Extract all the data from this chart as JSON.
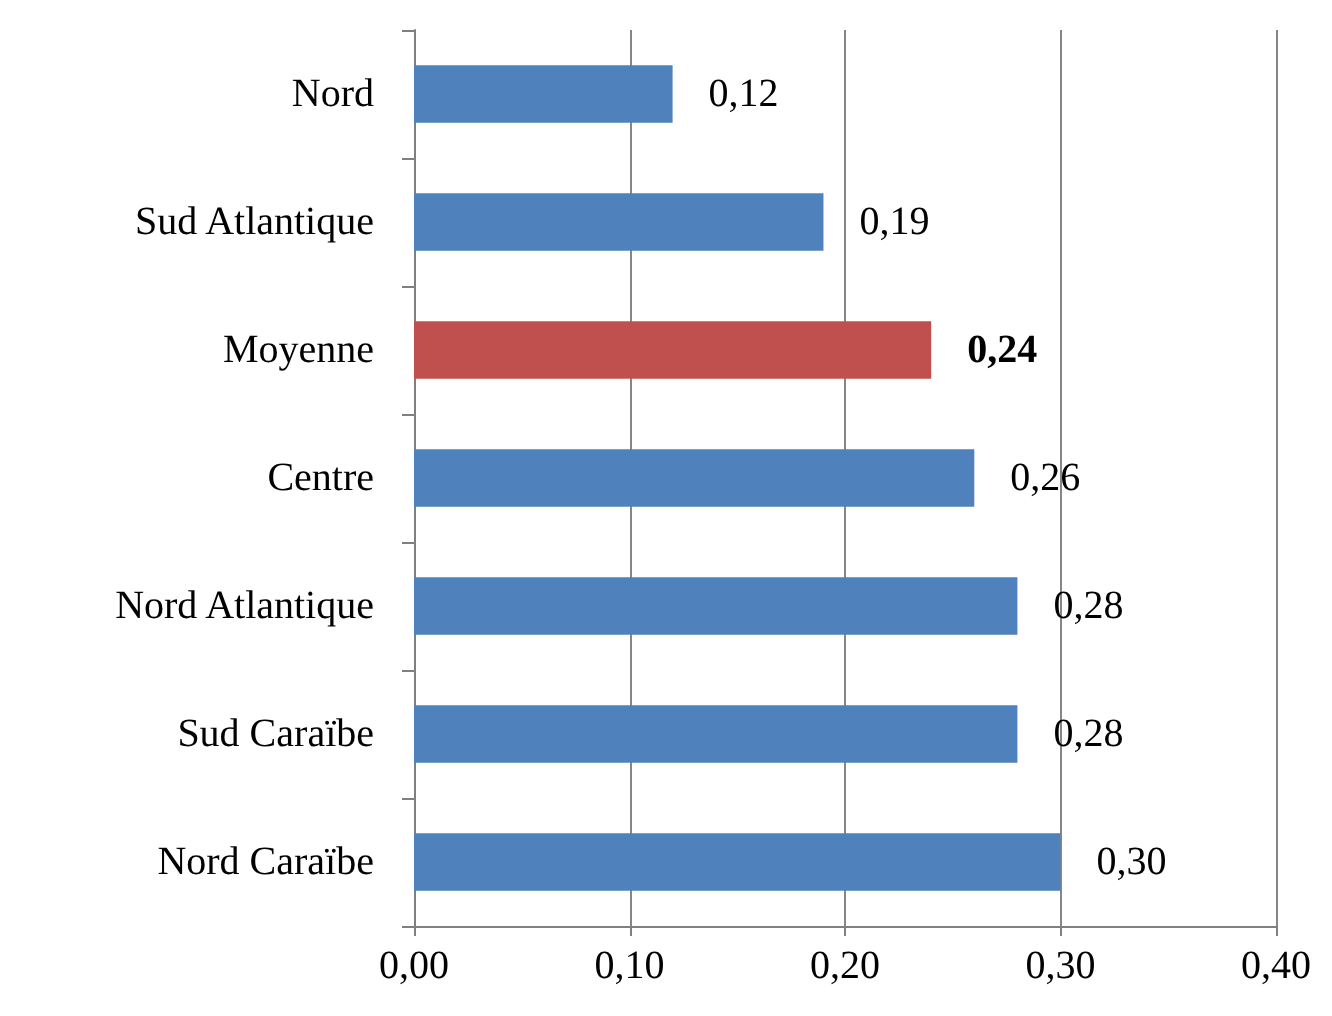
{
  "chart_data": {
    "type": "bar",
    "orientation": "horizontal",
    "categories": [
      "Nord",
      "Sud Atlantique",
      "Moyenne",
      "Centre",
      "Nord Atlantique",
      "Sud Caraïbe",
      "Nord Caraïbe"
    ],
    "values": [
      0.12,
      0.19,
      0.24,
      0.26,
      0.28,
      0.28,
      0.3
    ],
    "colors": [
      "#4f81bd",
      "#4f81bd",
      "#c0504d",
      "#4f81bd",
      "#4f81bd",
      "#4f81bd",
      "#4f81bd"
    ],
    "value_labels": [
      "0,12",
      "0,19",
      "0,24",
      "0,26",
      "0,28",
      "0,28",
      "0,30"
    ],
    "xlim": [
      0,
      0.4
    ],
    "xticks": [
      {
        "value": 0,
        "label": "0,00"
      },
      {
        "value": 0.1,
        "label": "0,10"
      },
      {
        "value": 0.2,
        "label": "0,20"
      },
      {
        "value": 0.3,
        "label": "0,30"
      },
      {
        "value": 0.4,
        "label": "0,40"
      }
    ],
    "grid": "x"
  }
}
